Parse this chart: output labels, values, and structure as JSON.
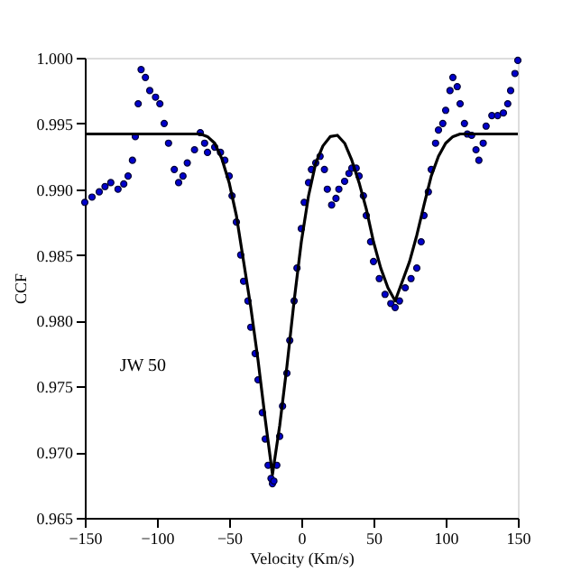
{
  "chart_data": {
    "type": "scatter",
    "xlabel": "Velocity (Km/s)",
    "ylabel": "CCF",
    "xlim": [
      -150,
      150
    ],
    "xticks": [
      -150,
      -100,
      -50,
      0,
      50,
      100,
      150
    ],
    "ylim": [
      0.965,
      1.0
    ],
    "yticks": [
      {
        "value": 0.965,
        "label": "0.965"
      },
      {
        "value": 0.97,
        "label": "0.970"
      },
      {
        "value": 0.975,
        "label": "0.975"
      },
      {
        "value": 0.98,
        "label": "0.980"
      },
      {
        "value": 0.985,
        "label": "0.985"
      },
      {
        "value": 0.99,
        "label": "0.990"
      },
      {
        "value": 0.995,
        "label": "0.995"
      },
      {
        "value": 1.0,
        "label": "1.000"
      }
    ],
    "grid": false,
    "annotations": [
      "JW 50"
    ],
    "series": [
      {
        "marker": "circle",
        "color": "#0000cc",
        "x": [
          -150,
          -145,
          -140,
          -136,
          -132,
          -127,
          -123,
          -120,
          -117,
          -115,
          -113,
          -111,
          -108,
          -105,
          -101,
          -98,
          -95,
          -92,
          -88,
          -85,
          -82,
          -79,
          -74,
          -70,
          -67,
          -65,
          -60,
          -56,
          -53,
          -50,
          -48,
          -45,
          -42,
          -40,
          -37,
          -35,
          -32,
          -30,
          -27,
          -25,
          -23,
          -21,
          -20,
          -19,
          -17,
          -15,
          -13,
          -10,
          -8,
          -5,
          -3,
          0,
          2,
          5,
          7,
          10,
          13,
          16,
          18,
          21,
          24,
          26,
          30,
          33,
          35,
          38,
          40,
          43,
          45,
          48,
          50,
          54,
          58,
          62,
          65,
          68,
          72,
          76,
          80,
          83,
          85,
          88,
          90,
          93,
          95,
          98,
          100,
          103,
          105,
          108,
          110,
          113,
          115,
          118,
          121,
          123,
          126,
          128,
          132,
          136,
          140,
          143,
          145,
          148,
          150
        ],
        "values": [
          0.989,
          0.9894,
          0.9898,
          0.9902,
          0.9905,
          0.99,
          0.9904,
          0.991,
          0.9922,
          0.994,
          0.9965,
          0.9991,
          0.9985,
          0.9975,
          0.997,
          0.9965,
          0.995,
          0.9935,
          0.9915,
          0.9905,
          0.991,
          0.992,
          0.993,
          0.9943,
          0.9935,
          0.9928,
          0.9932,
          0.9928,
          0.9922,
          0.991,
          0.9895,
          0.9875,
          0.985,
          0.983,
          0.9815,
          0.9795,
          0.9775,
          0.9755,
          0.973,
          0.971,
          0.969,
          0.968,
          0.9676,
          0.9678,
          0.969,
          0.9712,
          0.9735,
          0.976,
          0.9785,
          0.9815,
          0.984,
          0.987,
          0.989,
          0.9905,
          0.9915,
          0.992,
          0.9925,
          0.9915,
          0.99,
          0.9888,
          0.9893,
          0.99,
          0.9906,
          0.9912,
          0.9916,
          0.9916,
          0.991,
          0.9895,
          0.988,
          0.986,
          0.9845,
          0.9832,
          0.982,
          0.9813,
          0.981,
          0.9815,
          0.9825,
          0.9832,
          0.984,
          0.986,
          0.988,
          0.9898,
          0.9915,
          0.9935,
          0.9945,
          0.995,
          0.996,
          0.9975,
          0.9985,
          0.9978,
          0.9965,
          0.995,
          0.9942,
          0.9941,
          0.993,
          0.9922,
          0.9935,
          0.9948,
          0.9956,
          0.9956,
          0.9958,
          0.9965,
          0.9975,
          0.9988,
          0.9998
        ]
      },
      {
        "type": "line",
        "color": "#000000",
        "line_style": "solid",
        "x": [
          -150,
          -70,
          -65,
          -60,
          -55,
          -50,
          -45,
          -40,
          -35,
          -30,
          -25,
          -20,
          -15,
          -10,
          -5,
          0,
          5,
          10,
          15,
          20,
          25,
          30,
          35,
          40,
          45,
          50,
          55,
          60,
          65,
          70,
          75,
          80,
          85,
          90,
          95,
          100,
          105,
          110,
          150
        ],
        "values": [
          0.9942,
          0.9942,
          0.994,
          0.9935,
          0.9923,
          0.9905,
          0.988,
          0.9845,
          0.981,
          0.977,
          0.9725,
          0.9683,
          0.972,
          0.9765,
          0.9815,
          0.986,
          0.9895,
          0.992,
          0.9933,
          0.994,
          0.9941,
          0.9935,
          0.9922,
          0.9905,
          0.9885,
          0.986,
          0.984,
          0.9825,
          0.9815,
          0.983,
          0.9845,
          0.9865,
          0.9888,
          0.991,
          0.9925,
          0.9935,
          0.994,
          0.9942,
          0.9942
        ]
      }
    ]
  }
}
